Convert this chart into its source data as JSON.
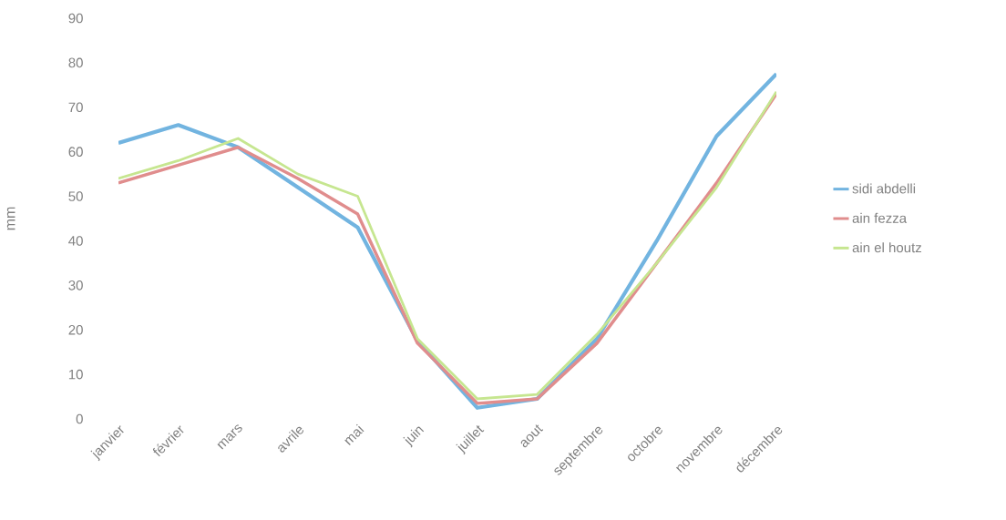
{
  "chart_data": {
    "type": "line",
    "ylabel": "mm",
    "categories": [
      "janvier",
      "février",
      "mars",
      "avrile",
      "mai",
      "juin",
      "juillet",
      "aout",
      "septembre",
      "octobre",
      "novembre",
      "décembre"
    ],
    "series": [
      {
        "name": "sidi abdelli",
        "color": "#72b4e0",
        "values": [
          62,
          66,
          61,
          52,
          43,
          17.5,
          2.5,
          4.5,
          18,
          40,
          63.5,
          77.5
        ]
      },
      {
        "name": "ain fezza",
        "color": "#e08d8d",
        "values": [
          53,
          57,
          61,
          54,
          46,
          17,
          3.5,
          4.5,
          17,
          35,
          53,
          73
        ]
      },
      {
        "name": "ain el houtz",
        "color": "#c6e690",
        "values": [
          54,
          58,
          63,
          55,
          50,
          18,
          4.5,
          5.5,
          19,
          35,
          52,
          73.5
        ]
      }
    ],
    "ylim": [
      0,
      90
    ],
    "yticks": [
      0,
      10,
      20,
      30,
      40,
      50,
      60,
      70,
      80,
      90
    ],
    "grid": false,
    "legend": "right",
    "marker": "none",
    "line_style": "solid"
  }
}
